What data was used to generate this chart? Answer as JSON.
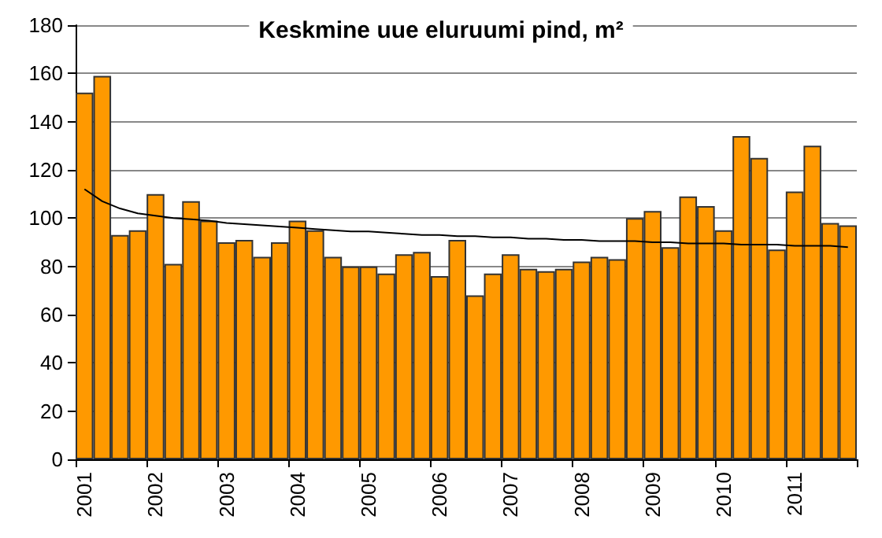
{
  "chart_data": {
    "type": "bar",
    "title": "Keskmine uue eluruumi pind, m²",
    "categories": [
      "2001",
      null,
      null,
      null,
      "2002",
      null,
      null,
      null,
      "2003",
      null,
      null,
      null,
      "2004",
      null,
      null,
      null,
      "2005",
      null,
      null,
      null,
      "2006",
      null,
      null,
      null,
      "2007",
      null,
      null,
      null,
      "2008",
      null,
      null,
      null,
      "2009",
      null,
      null,
      null,
      "2010",
      null,
      null,
      null,
      "2011",
      null,
      null,
      null
    ],
    "series": [
      {
        "color": "#ff9900",
        "values": [
          152,
          159,
          93,
          95,
          110,
          81,
          107,
          99,
          90,
          91,
          84,
          90,
          99,
          95,
          84,
          80,
          80,
          77,
          85,
          86,
          76,
          91,
          68,
          77,
          85,
          79,
          78,
          79,
          82,
          84,
          83,
          100,
          103,
          88,
          109,
          105,
          95,
          134,
          125,
          87,
          111,
          130,
          98,
          97
        ]
      },
      {
        "type": "line",
        "color": "#000000",
        "values": [
          112,
          107,
          104,
          102,
          101,
          100,
          99.5,
          99,
          98,
          97.5,
          97,
          96.5,
          96,
          95.5,
          95,
          94.5,
          94.5,
          94,
          93.5,
          93,
          93,
          92.5,
          92.5,
          92,
          92,
          91.5,
          91.5,
          91,
          91,
          90.5,
          90.5,
          90.5,
          90,
          90,
          89.5,
          89.5,
          89.5,
          89,
          89,
          89,
          88.5,
          88.5,
          88.5,
          88
        ]
      }
    ],
    "ylim": [
      0,
      180
    ],
    "yticks": [
      0,
      20,
      40,
      60,
      80,
      100,
      120,
      140,
      160,
      180
    ],
    "grid": "y",
    "marker": "none",
    "line_style": "solid"
  }
}
